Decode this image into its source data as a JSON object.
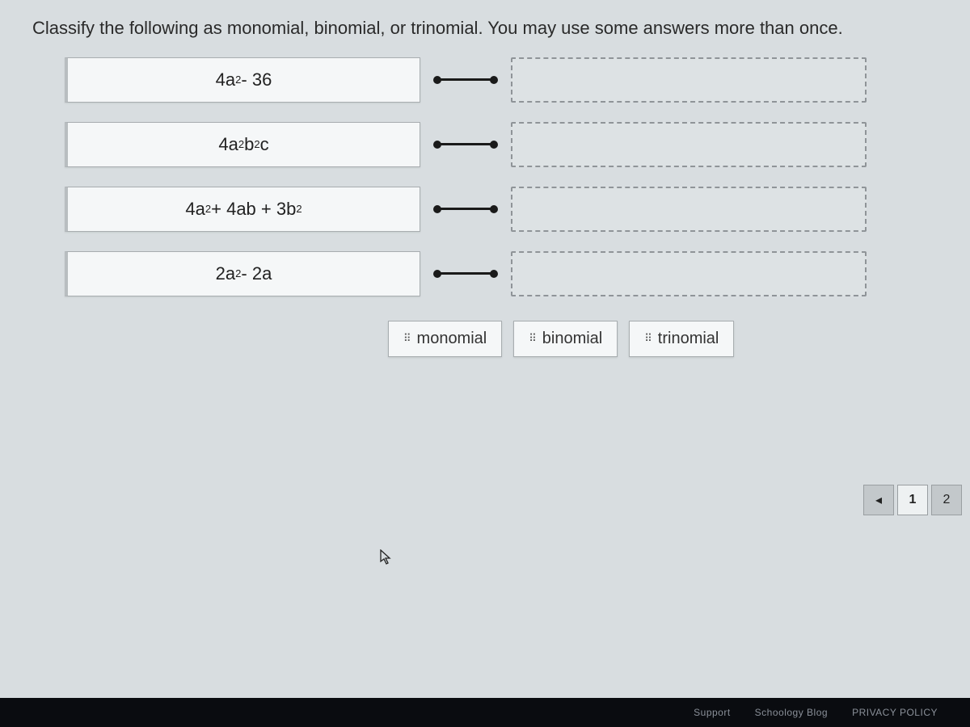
{
  "instructions": "Classify the following as monomial, binomial, or trinomial. You may use some answers more than once.",
  "expressions": [
    {
      "html": "4a<sup>2</sup> - 36"
    },
    {
      "html": "4a<sup>2</sup>b<sup>2</sup>c"
    },
    {
      "html": "4a<sup>2</sup> + 4ab + 3b<sup>2</sup>"
    },
    {
      "html": "2a<sup>2</sup> - 2a"
    }
  ],
  "answers": [
    {
      "label": "monomial"
    },
    {
      "label": "binomial"
    },
    {
      "label": "trinomial"
    }
  ],
  "pager": {
    "prev_symbol": "◂",
    "page1": "1",
    "page2": "2"
  },
  "footer": {
    "support": "Support",
    "schoology": "Schoology Blog",
    "privacy": "PRIVACY POLICY"
  },
  "colors": {
    "page_bg": "#d8dde0",
    "box_bg": "#f5f7f8",
    "box_border": "#a8adb0",
    "dash_border": "#8f9498",
    "text": "#2a2a2a",
    "footer_bg": "#0a0c10"
  }
}
